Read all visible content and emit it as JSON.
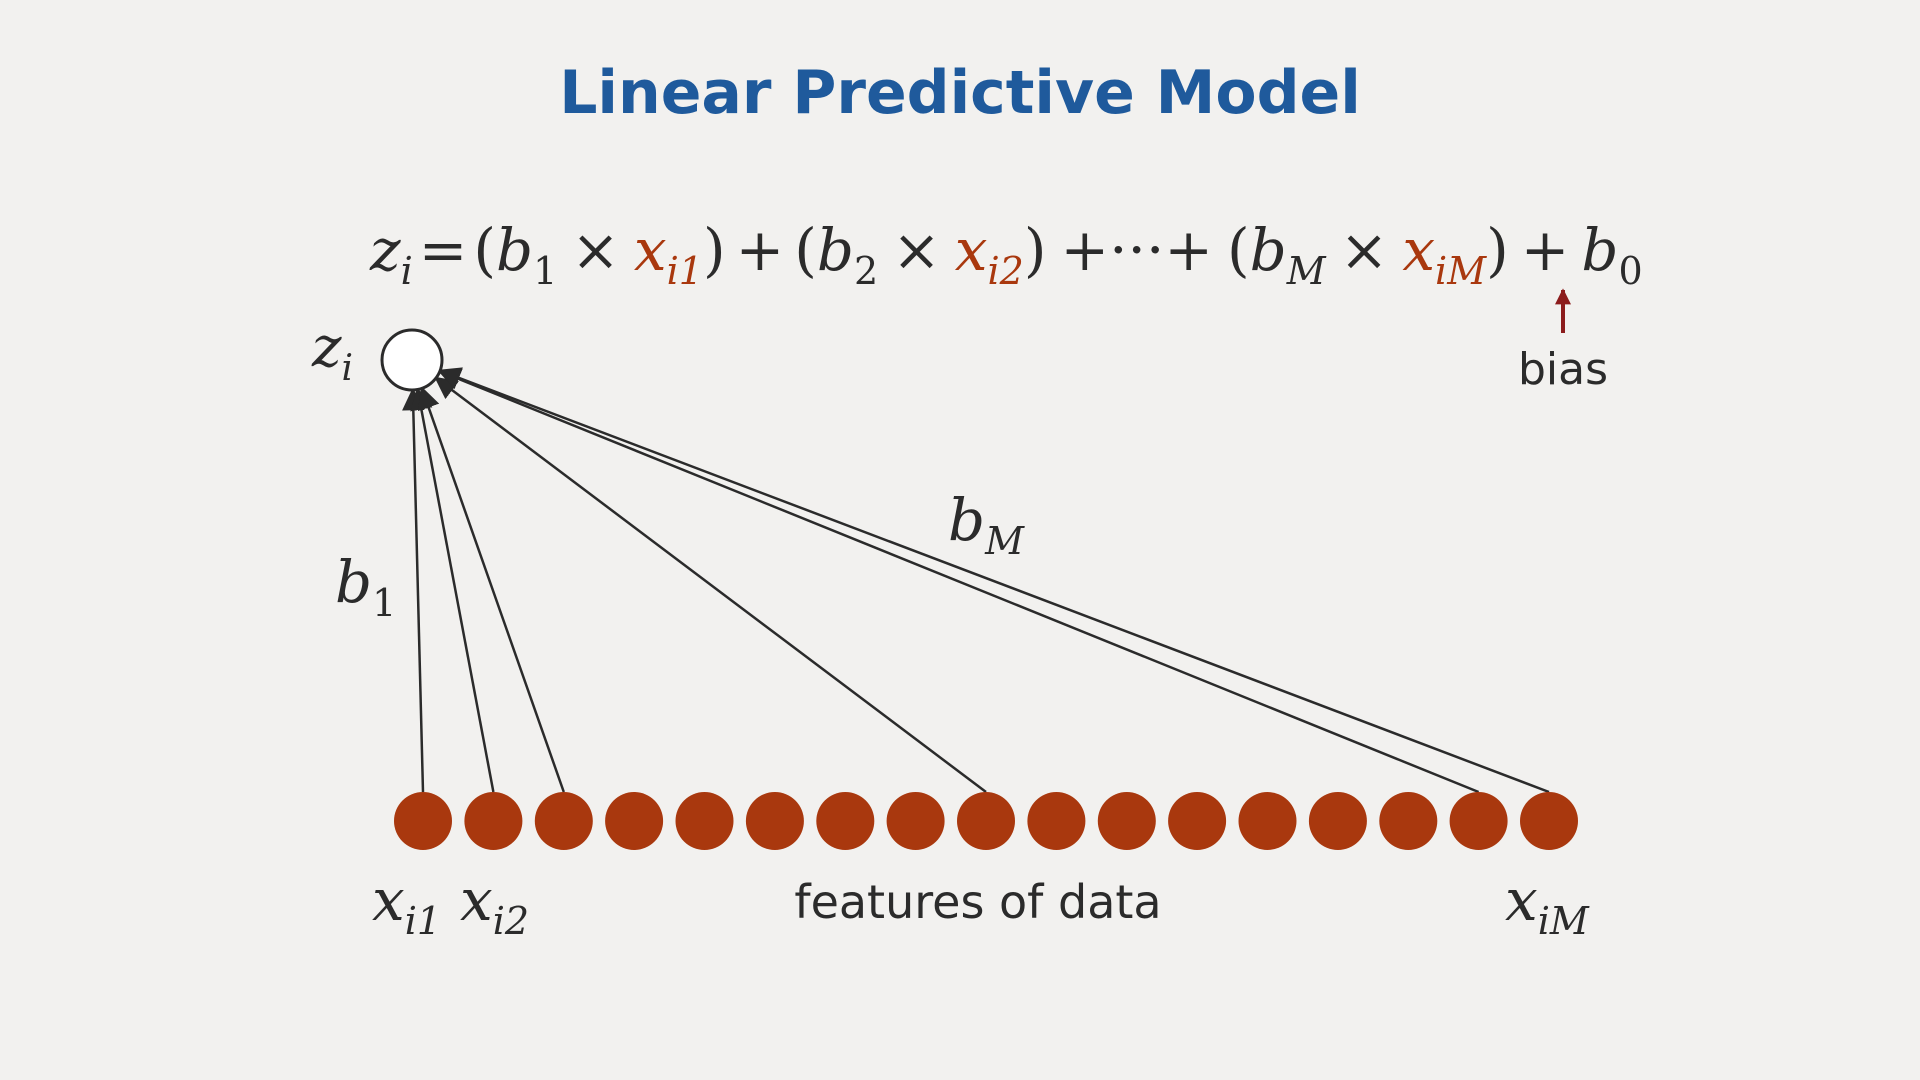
{
  "title": "Linear Predictive Model",
  "equation": {
    "lhs": "z",
    "lhs_sub": "i",
    "eq": "=",
    "open1": "(",
    "b1": "b",
    "b1_sub": "1",
    "times": "×",
    "x1": "x",
    "x1_sub": "i1",
    "close1": ")",
    "plus1": "+",
    "open2": "(",
    "b2": "b",
    "b2_sub": "2",
    "x2": "x",
    "x2_sub": "i2",
    "close2": ")",
    "plus_dots": "+···+",
    "open3": "(",
    "bM": "b",
    "bM_sub": "M",
    "xM": "x",
    "xM_sub": "iM",
    "close3": ")",
    "plus2": "+",
    "b0": "b",
    "b0_sub": "0"
  },
  "bias_label": "bias",
  "output_node": {
    "label": "z",
    "label_sub": "i"
  },
  "weight_labels": {
    "b1": "b",
    "b1_sub": "1",
    "bM": "b",
    "bM_sub": "M"
  },
  "features_label": "features of data",
  "feature_labels": {
    "first": "x",
    "first_sub": "i1",
    "second": "x",
    "second_sub": "i2",
    "last": "x",
    "last_sub": "iM"
  },
  "feature_count": 17,
  "connected_features": [
    1,
    2,
    3,
    9,
    16,
    17
  ],
  "colors": {
    "title": "#1f5a9c",
    "feature_node": "#a9380e",
    "feature_highlight": "#a9380e",
    "arrow": "#2b2b2b",
    "bias_arrow": "#8c1c1c",
    "text": "#2b2b2b",
    "background": "#f2f1ef"
  }
}
